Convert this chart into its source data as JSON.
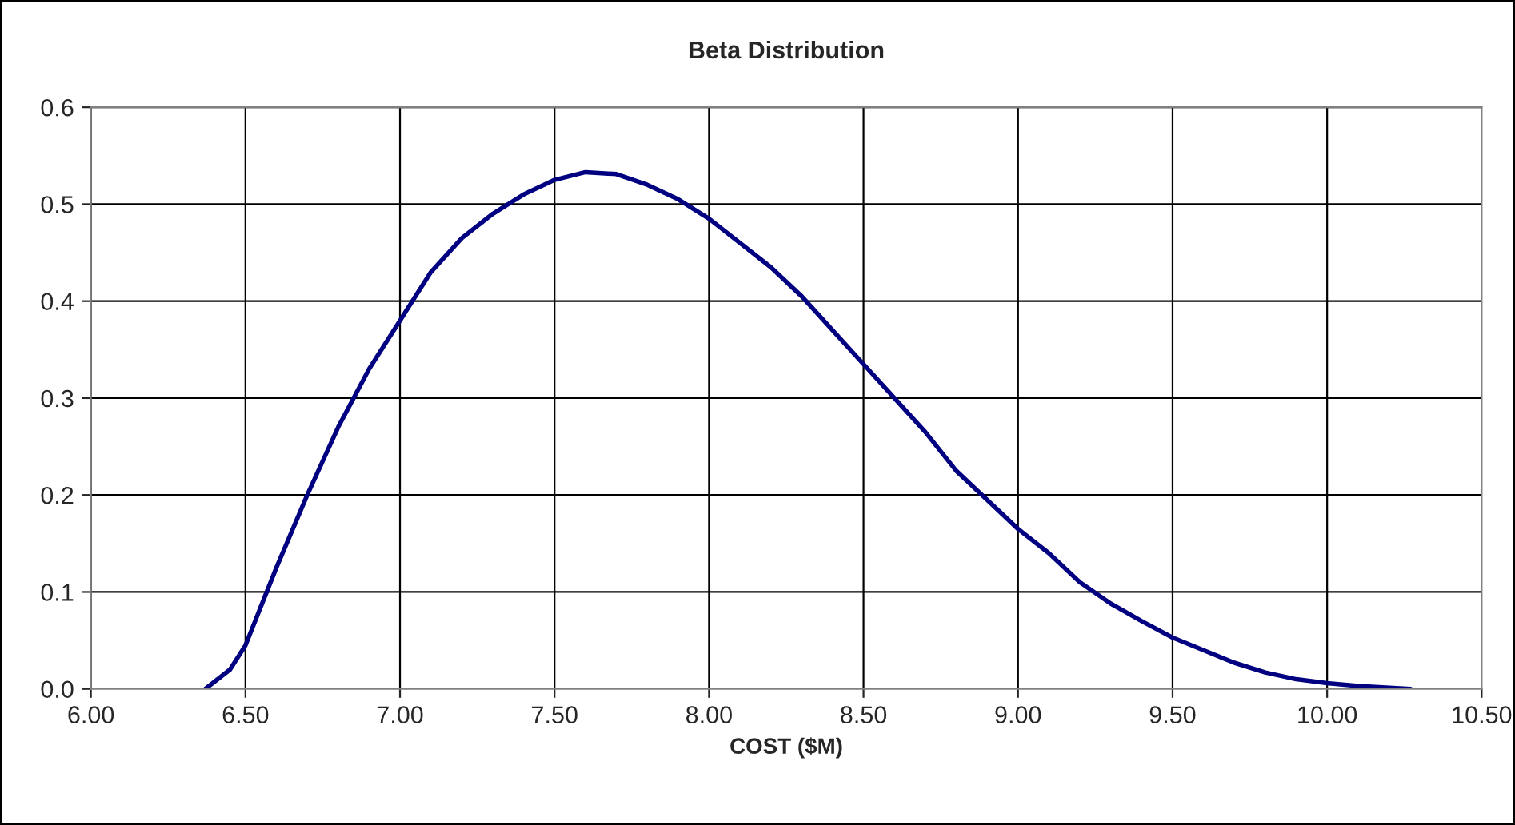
{
  "chart_data": {
    "type": "line",
    "title": "Beta Distribution",
    "xlabel": "COST ($M)",
    "x": [
      6.37,
      6.45,
      6.5,
      6.55,
      6.6,
      6.7,
      6.8,
      6.9,
      7.0,
      7.1,
      7.2,
      7.3,
      7.4,
      7.5,
      7.6,
      7.7,
      7.8,
      7.9,
      8.0,
      8.1,
      8.2,
      8.3,
      8.4,
      8.5,
      8.6,
      8.7,
      8.8,
      8.9,
      9.0,
      9.1,
      9.2,
      9.3,
      9.4,
      9.5,
      9.6,
      9.7,
      9.8,
      9.9,
      10.0,
      10.1,
      10.27
    ],
    "series": [
      {
        "color": "#000080",
        "values": [
          0.0,
          0.02,
          0.045,
          0.085,
          0.125,
          0.2,
          0.27,
          0.33,
          0.38,
          0.43,
          0.465,
          0.49,
          0.51,
          0.525,
          0.533,
          0.531,
          0.52,
          0.505,
          0.485,
          0.46,
          0.435,
          0.405,
          0.37,
          0.335,
          0.3,
          0.265,
          0.225,
          0.195,
          0.165,
          0.14,
          0.11,
          0.088,
          0.07,
          0.053,
          0.04,
          0.027,
          0.017,
          0.01,
          0.006,
          0.003,
          0.0
        ]
      }
    ],
    "xlim": [
      6,
      10.5
    ],
    "xticks": [
      {
        "value": 6,
        "label": "6.00"
      },
      {
        "value": 6.5,
        "label": "6.50"
      },
      {
        "value": 7,
        "label": "7.00"
      },
      {
        "value": 7.5,
        "label": "7.50"
      },
      {
        "value": 8,
        "label": "8.00"
      },
      {
        "value": 8.5,
        "label": "8.50"
      },
      {
        "value": 9,
        "label": "9.00"
      },
      {
        "value": 9.5,
        "label": "9.50"
      },
      {
        "value": 10,
        "label": "10.00"
      },
      {
        "value": 10.5,
        "label": "10.50"
      }
    ],
    "ylim": [
      0,
      0.6
    ],
    "yticks": [
      {
        "value": 0,
        "label": "0.0"
      },
      0.1,
      0.2,
      0.3,
      0.4,
      0.5,
      0.6
    ],
    "grid": true,
    "line_style": "solid",
    "marker": "none"
  }
}
